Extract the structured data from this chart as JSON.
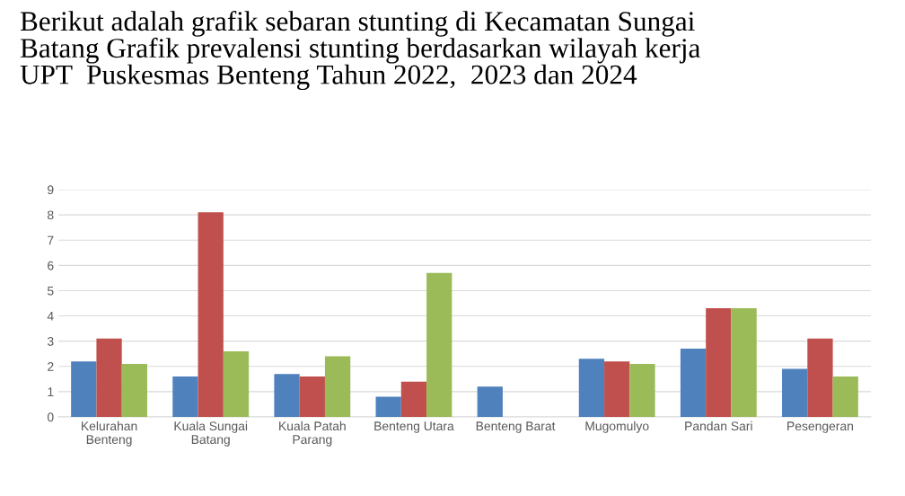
{
  "chart_data": {
    "type": "bar",
    "title": "Berikut adalah grafik sebaran stunting di Kecamatan Sungai\nBatang Grafik prevalensi stunting berdasarkan wilayah kerja\nUPT  Puskesmas Benteng Tahun 2022,  2023 dan 2024",
    "categories": [
      "Kelurahan\nBenteng",
      "Kuala Sungai\nBatang",
      "Kuala Patah\nParang",
      "Benteng Utara",
      "Benteng Barat",
      "Mugomulyo",
      "Pandan Sari",
      "Pesengeran"
    ],
    "series": [
      {
        "color": "#4f81bd",
        "values": [
          2.2,
          1.6,
          1.7,
          0.8,
          1.2,
          2.3,
          2.7,
          1.9
        ]
      },
      {
        "color": "#c0504d",
        "values": [
          3.1,
          8.1,
          1.6,
          1.4,
          null,
          2.2,
          4.3,
          3.1
        ]
      },
      {
        "color": "#9bbb59",
        "values": [
          2.1,
          2.6,
          2.4,
          5.7,
          null,
          2.1,
          4.3,
          1.6
        ]
      }
    ],
    "ylim": [
      0,
      9
    ],
    "yticks": [
      0,
      1,
      2,
      3,
      4,
      5,
      6,
      7,
      8,
      9
    ],
    "grid": "y",
    "legend": false
  }
}
